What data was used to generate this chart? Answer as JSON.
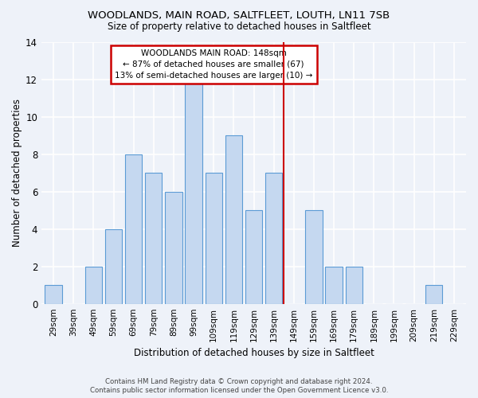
{
  "title_line1": "WOODLANDS, MAIN ROAD, SALTFLEET, LOUTH, LN11 7SB",
  "title_line2": "Size of property relative to detached houses in Saltfleet",
  "xlabel": "Distribution of detached houses by size in Saltfleet",
  "ylabel": "Number of detached properties",
  "categories": [
    "29sqm",
    "39sqm",
    "49sqm",
    "59sqm",
    "69sqm",
    "79sqm",
    "89sqm",
    "99sqm",
    "109sqm",
    "119sqm",
    "129sqm",
    "139sqm",
    "149sqm",
    "159sqm",
    "169sqm",
    "179sqm",
    "189sqm",
    "199sqm",
    "209sqm",
    "219sqm",
    "229sqm"
  ],
  "values": [
    1,
    0,
    2,
    4,
    8,
    7,
    6,
    12,
    7,
    9,
    5,
    7,
    0,
    5,
    2,
    2,
    0,
    0,
    0,
    1,
    0
  ],
  "bar_color": "#c5d8f0",
  "bar_edge_color": "#5b9bd5",
  "marker_color": "#cc0000",
  "annotation_title": "WOODLANDS MAIN ROAD: 148sqm",
  "annotation_line2": "← 87% of detached houses are smaller (67)",
  "annotation_line3": "13% of semi-detached houses are larger (10) →",
  "annotation_box_color": "#cc0000",
  "ylim": [
    0,
    14
  ],
  "yticks": [
    0,
    2,
    4,
    6,
    8,
    10,
    12,
    14
  ],
  "footer_line1": "Contains HM Land Registry data © Crown copyright and database right 2024.",
  "footer_line2": "Contains public sector information licensed under the Open Government Licence v3.0.",
  "bg_color": "#eef2f9",
  "grid_color": "#ffffff"
}
